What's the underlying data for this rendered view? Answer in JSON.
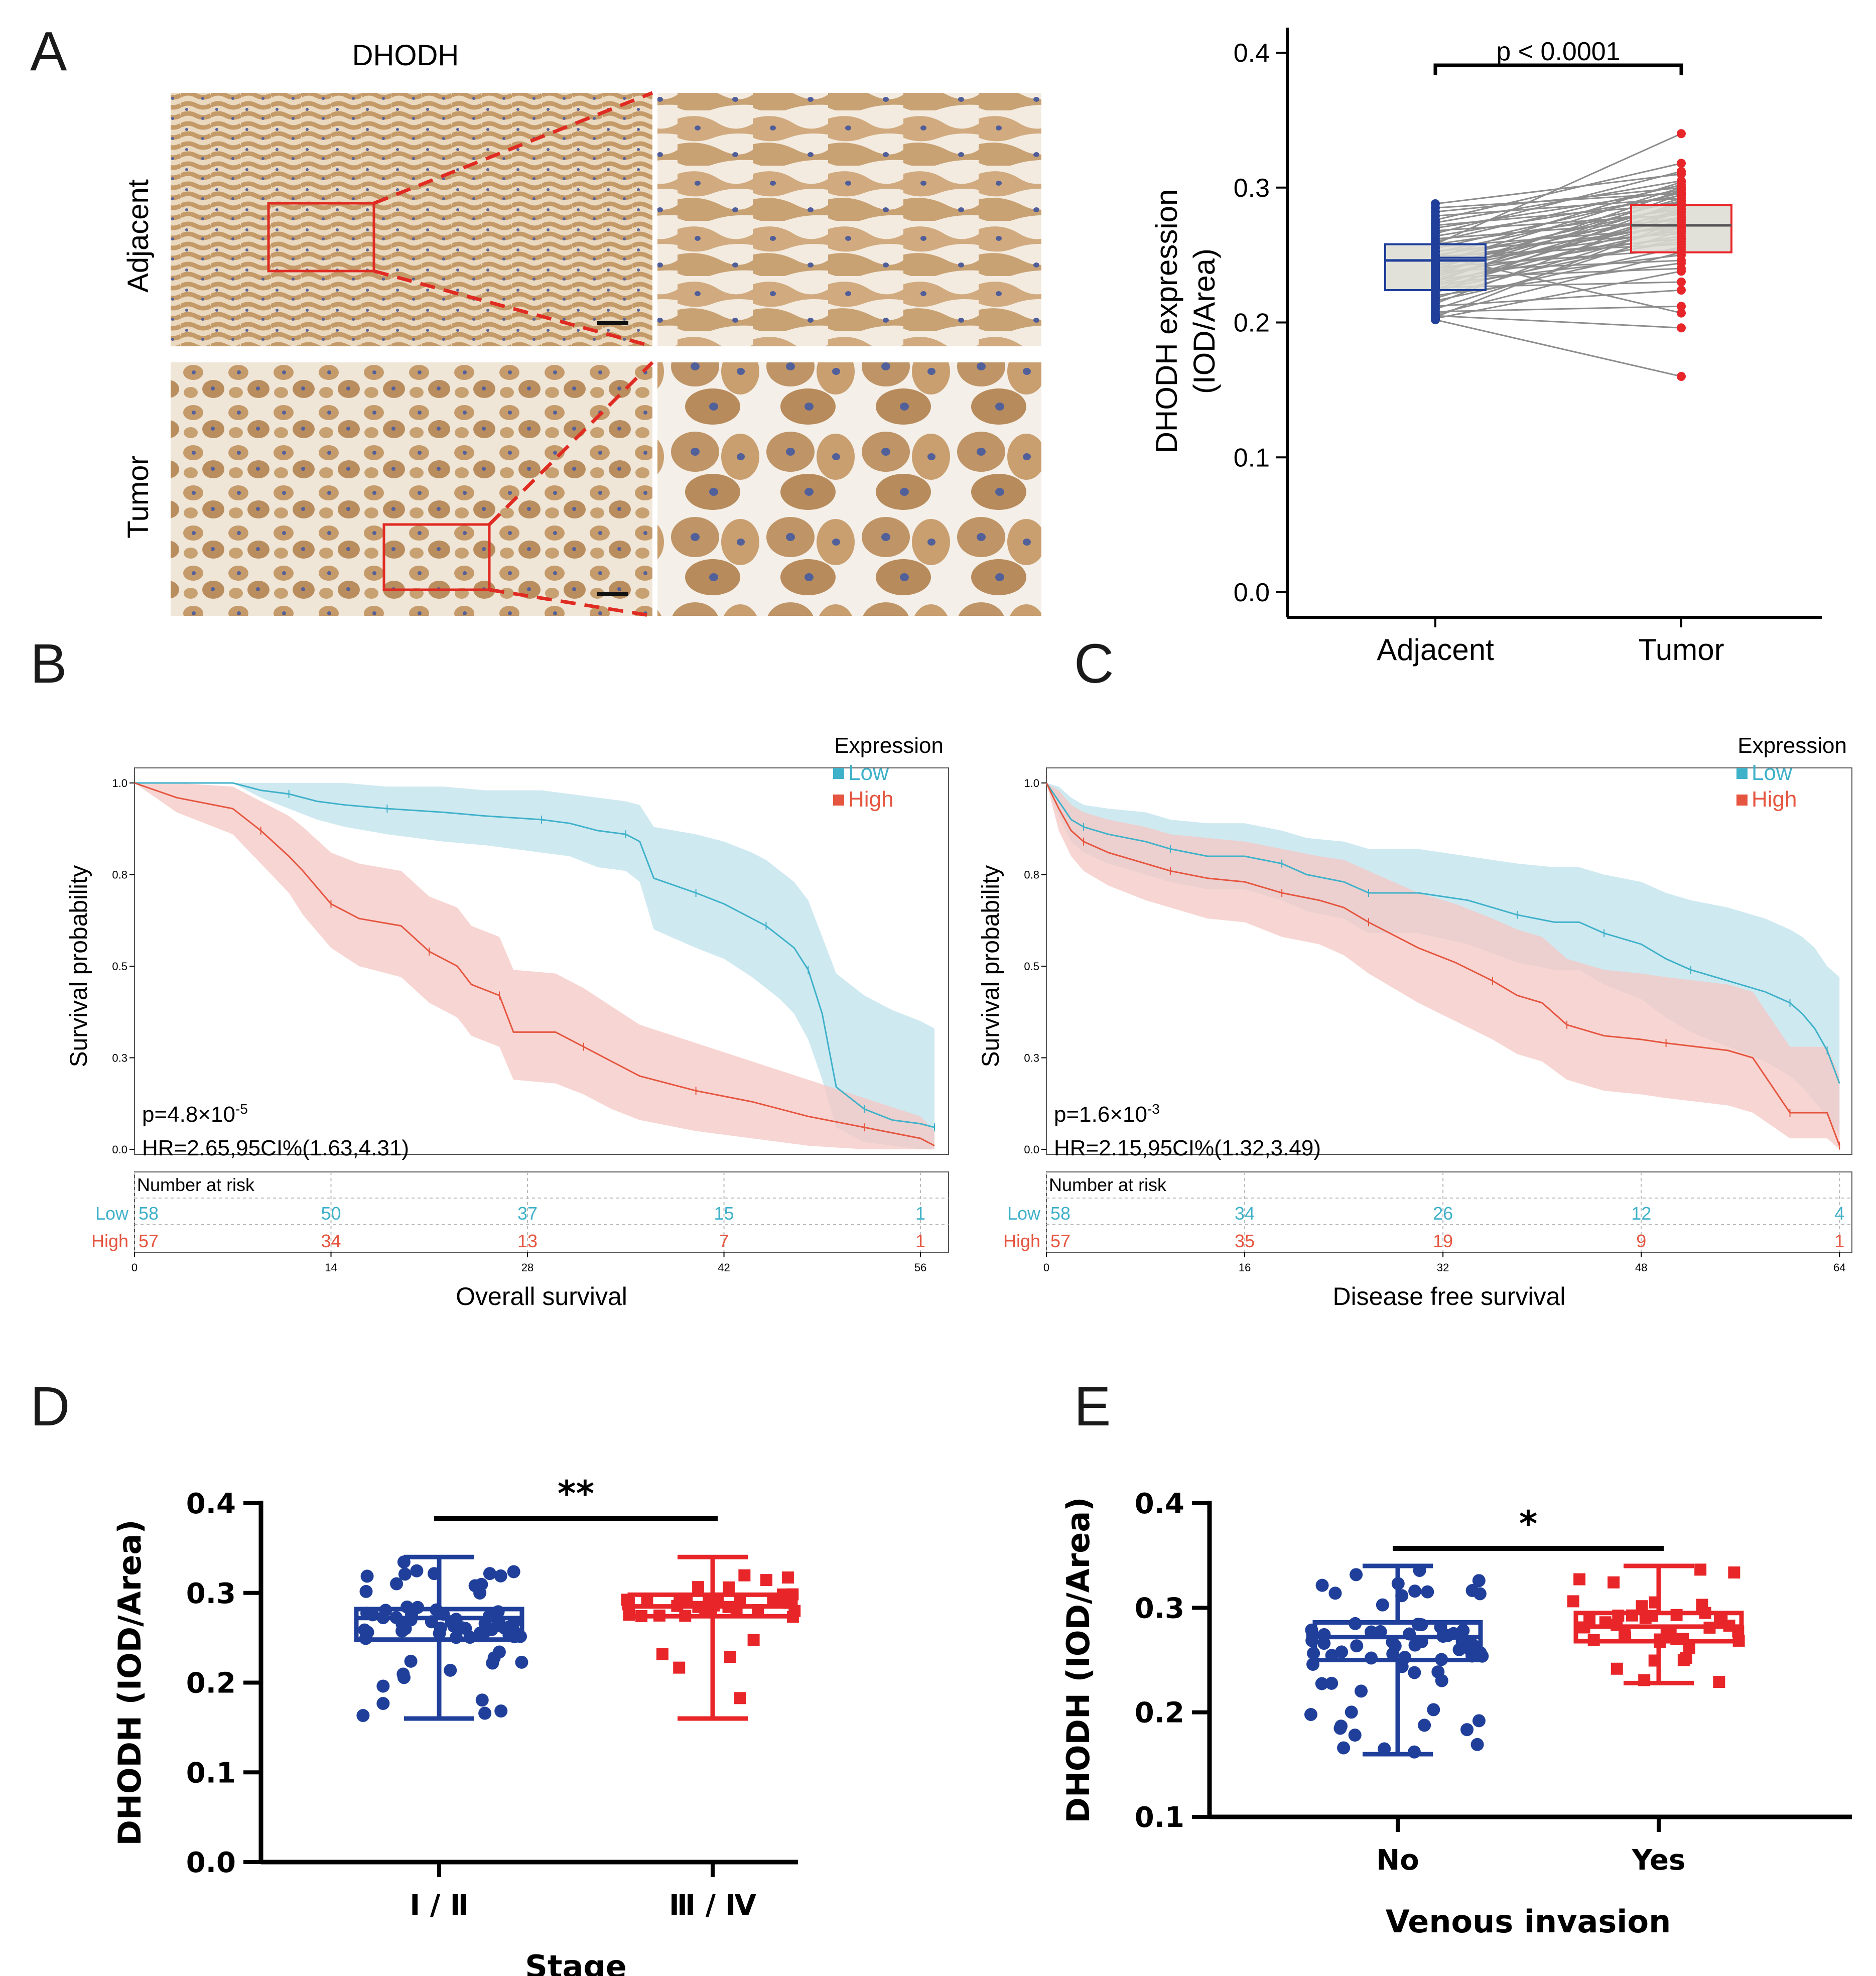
{
  "colors": {
    "blue_dark": "#1f3f9a",
    "red": "#e8262a",
    "km_low": "#3fb1c9",
    "km_high": "#e5553f",
    "km_low_band": "#bfe1ec",
    "km_high_band": "#f4c7c3",
    "grey_line": "#8c8c8c",
    "box_fill": "#dcdcd4",
    "tissue_bg": "#efe4d2",
    "tissue_cell": "#c79b6a",
    "nuclei": "#4c5a93"
  },
  "panelA": {
    "letter": "A",
    "stain_title": "DHODH",
    "row_labels": [
      "Adjacent",
      "Tumor"
    ]
  },
  "panelA_chart": {
    "title_label": "p < 0.0001",
    "ylabel_line1": "DHODH expression",
    "ylabel_line2": "(IOD/Area)",
    "categories": [
      "Adjacent",
      "Tumor"
    ]
  },
  "panelB": {
    "letter": "B"
  },
  "panelC": {
    "letter": "C"
  },
  "panelD": {
    "letter": "D"
  },
  "panelE": {
    "letter": "E"
  },
  "chart_data": [
    {
      "id": "A-paired-box",
      "type": "box",
      "title": "p < 0.0001",
      "xlabel": "",
      "ylabel": "DHODH expression (IOD/Area)",
      "categories": [
        "Adjacent",
        "Tumor"
      ],
      "yticks": [
        "0.0",
        "0.1",
        "0.2",
        "0.3",
        "0.4"
      ],
      "ylim": [
        0,
        0.4
      ],
      "boxes": [
        {
          "name": "Adjacent",
          "q1": 0.224,
          "median": 0.246,
          "q3": 0.258,
          "min": 0.202,
          "max": 0.288
        },
        {
          "name": "Tumor",
          "q1": 0.252,
          "median": 0.272,
          "q3": 0.287,
          "min": 0.16,
          "max": 0.34
        }
      ],
      "pairs": [
        [
          0.288,
          0.31
        ],
        [
          0.285,
          0.296
        ],
        [
          0.282,
          0.3
        ],
        [
          0.279,
          0.292
        ],
        [
          0.276,
          0.318
        ],
        [
          0.274,
          0.305
        ],
        [
          0.272,
          0.288
        ],
        [
          0.27,
          0.298
        ],
        [
          0.268,
          0.28
        ],
        [
          0.266,
          0.312
        ],
        [
          0.264,
          0.294
        ],
        [
          0.262,
          0.276
        ],
        [
          0.26,
          0.302
        ],
        [
          0.258,
          0.284
        ],
        [
          0.256,
          0.27
        ],
        [
          0.255,
          0.296
        ],
        [
          0.253,
          0.266
        ],
        [
          0.252,
          0.29
        ],
        [
          0.25,
          0.278
        ],
        [
          0.249,
          0.258
        ],
        [
          0.248,
          0.304
        ],
        [
          0.247,
          0.272
        ],
        [
          0.246,
          0.286
        ],
        [
          0.245,
          0.262
        ],
        [
          0.244,
          0.3
        ],
        [
          0.243,
          0.268
        ],
        [
          0.242,
          0.282
        ],
        [
          0.241,
          0.254
        ],
        [
          0.24,
          0.292
        ],
        [
          0.239,
          0.274
        ],
        [
          0.238,
          0.246
        ],
        [
          0.237,
          0.288
        ],
        [
          0.236,
          0.264
        ],
        [
          0.235,
          0.298
        ],
        [
          0.234,
          0.278
        ],
        [
          0.233,
          0.24
        ],
        [
          0.232,
          0.284
        ],
        [
          0.231,
          0.26
        ],
        [
          0.23,
          0.295
        ],
        [
          0.229,
          0.27
        ],
        [
          0.228,
          0.25
        ],
        [
          0.227,
          0.282
        ],
        [
          0.226,
          0.23
        ],
        [
          0.225,
          0.276
        ],
        [
          0.224,
          0.262
        ],
        [
          0.222,
          0.29
        ],
        [
          0.22,
          0.244
        ],
        [
          0.218,
          0.272
        ],
        [
          0.216,
          0.256
        ],
        [
          0.214,
          0.284
        ],
        [
          0.212,
          0.224
        ],
        [
          0.21,
          0.268
        ],
        [
          0.208,
          0.212
        ],
        [
          0.206,
          0.252
        ],
        [
          0.205,
          0.196
        ],
        [
          0.204,
          0.276
        ],
        [
          0.203,
          0.238
        ],
        [
          0.202,
          0.16
        ],
        [
          0.258,
          0.34
        ],
        [
          0.25,
          0.207
        ]
      ]
    },
    {
      "id": "B-km",
      "type": "line",
      "title": "",
      "xlabel": "Overall survival",
      "ylabel": "Survival probability",
      "xlim": [
        0,
        58
      ],
      "ylim": [
        0,
        1
      ],
      "xticks": [
        "0",
        "14",
        "28",
        "42",
        "56"
      ],
      "yticks": [
        "0.0",
        "0.3",
        "0.5",
        "0.8",
        "1.0"
      ],
      "legend_title": "Expression",
      "p_value_base": "p=4.8×10",
      "p_value_exp": "-5",
      "hr_text": "HR=2.65,95CI%(1.63,4.31)",
      "risk_title": "Number at risk",
      "series": [
        {
          "name": "Low",
          "x": [
            0,
            7,
            9,
            11,
            13,
            15,
            18,
            22,
            25,
            29,
            31,
            33,
            35,
            36,
            37,
            40,
            42,
            44,
            45,
            46,
            47,
            48,
            49,
            50,
            52,
            54,
            56,
            57
          ],
          "y": [
            1.0,
            1.0,
            0.98,
            0.97,
            0.95,
            0.94,
            0.93,
            0.92,
            0.91,
            0.9,
            0.89,
            0.87,
            0.86,
            0.84,
            0.74,
            0.7,
            0.67,
            0.63,
            0.61,
            0.58,
            0.55,
            0.49,
            0.37,
            0.17,
            0.11,
            0.08,
            0.07,
            0.06
          ],
          "upper": [
            1.0,
            1.0,
            1.0,
            1.0,
            1.0,
            1.0,
            0.99,
            0.99,
            0.98,
            0.98,
            0.97,
            0.96,
            0.95,
            0.94,
            0.88,
            0.86,
            0.84,
            0.81,
            0.79,
            0.76,
            0.73,
            0.68,
            0.58,
            0.48,
            0.42,
            0.38,
            0.35,
            0.33
          ],
          "lower": [
            1.0,
            1.0,
            0.96,
            0.93,
            0.9,
            0.88,
            0.86,
            0.84,
            0.83,
            0.81,
            0.8,
            0.77,
            0.76,
            0.73,
            0.6,
            0.55,
            0.52,
            0.47,
            0.44,
            0.41,
            0.37,
            0.3,
            0.19,
            0.06,
            0.02,
            0.01,
            0.0,
            0.0
          ],
          "risk": [
            "58",
            "50",
            "37",
            "15",
            "1"
          ]
        },
        {
          "name": "High",
          "x": [
            0,
            3,
            7,
            9,
            11,
            12,
            14,
            16,
            19,
            21,
            23,
            24,
            26,
            27,
            30,
            32,
            34,
            36,
            40,
            44,
            48,
            52,
            56,
            57
          ],
          "y": [
            1.0,
            0.96,
            0.93,
            0.87,
            0.8,
            0.76,
            0.67,
            0.63,
            0.61,
            0.54,
            0.5,
            0.45,
            0.42,
            0.32,
            0.32,
            0.28,
            0.24,
            0.2,
            0.16,
            0.13,
            0.09,
            0.06,
            0.03,
            0.01
          ],
          "upper": [
            1.0,
            1.0,
            0.99,
            0.95,
            0.91,
            0.88,
            0.81,
            0.78,
            0.76,
            0.69,
            0.66,
            0.61,
            0.58,
            0.49,
            0.48,
            0.44,
            0.39,
            0.34,
            0.29,
            0.24,
            0.19,
            0.14,
            0.09,
            0.05
          ],
          "lower": [
            1.0,
            0.92,
            0.86,
            0.78,
            0.7,
            0.64,
            0.55,
            0.5,
            0.47,
            0.4,
            0.36,
            0.31,
            0.28,
            0.19,
            0.18,
            0.15,
            0.11,
            0.08,
            0.05,
            0.03,
            0.01,
            0.0,
            0.0,
            0.0
          ],
          "risk": [
            "57",
            "34",
            "13",
            "7",
            "1"
          ]
        }
      ]
    },
    {
      "id": "C-km",
      "type": "line",
      "title": "",
      "xlabel": "Disease free survival",
      "ylabel": "Survival probability",
      "xlim": [
        0,
        65
      ],
      "ylim": [
        0,
        1
      ],
      "xticks": [
        "0",
        "16",
        "32",
        "48",
        "64"
      ],
      "yticks": [
        "0.0",
        "0.3",
        "0.5",
        "0.8",
        "1.0"
      ],
      "legend_title": "Expression",
      "p_value_base": "p=1.6×10",
      "p_value_exp": "-3",
      "hr_text": "HR=2.15,95CI%(1.32,3.49)",
      "risk_title": "Number at risk",
      "series": [
        {
          "name": "Low",
          "x": [
            0,
            1,
            2,
            3,
            5,
            8,
            10,
            13,
            16,
            19,
            21,
            24,
            26,
            30,
            34,
            38,
            41,
            43,
            45,
            48,
            50,
            52,
            55,
            58,
            60,
            61,
            62,
            63,
            64
          ],
          "y": [
            1.0,
            0.95,
            0.9,
            0.88,
            0.86,
            0.84,
            0.82,
            0.8,
            0.8,
            0.78,
            0.75,
            0.73,
            0.7,
            0.7,
            0.68,
            0.64,
            0.62,
            0.62,
            0.59,
            0.56,
            0.52,
            0.49,
            0.46,
            0.43,
            0.4,
            0.37,
            0.33,
            0.27,
            0.18
          ],
          "upper": [
            1.0,
            0.99,
            0.96,
            0.94,
            0.93,
            0.92,
            0.9,
            0.89,
            0.89,
            0.87,
            0.85,
            0.84,
            0.82,
            0.82,
            0.8,
            0.78,
            0.77,
            0.77,
            0.75,
            0.73,
            0.7,
            0.68,
            0.66,
            0.63,
            0.6,
            0.58,
            0.55,
            0.5,
            0.47
          ],
          "lower": [
            1.0,
            0.91,
            0.84,
            0.81,
            0.78,
            0.75,
            0.73,
            0.71,
            0.71,
            0.68,
            0.65,
            0.63,
            0.59,
            0.59,
            0.56,
            0.51,
            0.49,
            0.49,
            0.45,
            0.41,
            0.36,
            0.32,
            0.28,
            0.24,
            0.2,
            0.17,
            0.13,
            0.09,
            0.04
          ]
        },
        {
          "name": "High",
          "x": [
            0,
            1,
            2,
            3,
            5,
            8,
            10,
            13,
            16,
            19,
            22,
            24,
            26,
            30,
            33,
            36,
            38,
            40,
            42,
            45,
            48,
            50,
            55,
            57,
            60,
            61,
            63,
            64
          ],
          "y": [
            1.0,
            0.93,
            0.87,
            0.84,
            0.81,
            0.78,
            0.76,
            0.74,
            0.73,
            0.7,
            0.68,
            0.66,
            0.62,
            0.55,
            0.51,
            0.46,
            0.42,
            0.4,
            0.34,
            0.31,
            0.3,
            0.29,
            0.27,
            0.25,
            0.1,
            0.1,
            0.1,
            0.01
          ],
          "upper": [
            1.0,
            0.98,
            0.94,
            0.92,
            0.9,
            0.88,
            0.86,
            0.85,
            0.84,
            0.82,
            0.8,
            0.79,
            0.76,
            0.7,
            0.67,
            0.63,
            0.6,
            0.58,
            0.52,
            0.49,
            0.48,
            0.47,
            0.45,
            0.43,
            0.28,
            0.28,
            0.28,
            0.2
          ],
          "lower": [
            1.0,
            0.87,
            0.8,
            0.76,
            0.72,
            0.68,
            0.66,
            0.63,
            0.62,
            0.58,
            0.56,
            0.53,
            0.48,
            0.4,
            0.35,
            0.3,
            0.26,
            0.24,
            0.19,
            0.16,
            0.15,
            0.14,
            0.12,
            0.1,
            0.03,
            0.03,
            0.03,
            0.0
          ],
          "risk": [
            "57",
            "35",
            "19",
            "9",
            "1"
          ]
        }
      ],
      "risk_low": [
        "58",
        "34",
        "26",
        "12",
        "4"
      ]
    },
    {
      "id": "D-box",
      "type": "box",
      "title": "**",
      "xlabel": "Stage",
      "ylabel": "DHODH (IOD/Area)",
      "categories": [
        "Ⅰ / Ⅱ",
        "Ⅲ / Ⅳ"
      ],
      "yticks": [
        "0.0",
        "0.1",
        "0.2",
        "0.3",
        "0.4"
      ],
      "ylim": [
        0,
        0.4
      ],
      "boxes": [
        {
          "name": "Ⅰ / Ⅱ",
          "min": 0.16,
          "q1": 0.248,
          "median": 0.272,
          "q3": 0.282,
          "max": 0.34
        },
        {
          "name": "Ⅲ / Ⅳ",
          "min": 0.16,
          "q1": 0.274,
          "median": 0.285,
          "q3": 0.298,
          "max": 0.34
        }
      ]
    },
    {
      "id": "E-box",
      "type": "box",
      "title": "*",
      "xlabel": "Venous invasion",
      "ylabel": "DHODH (IOD/Area)",
      "categories": [
        "No",
        "Yes"
      ],
      "yticks": [
        "0.1",
        "0.2",
        "0.3",
        "0.4"
      ],
      "ylim": [
        0.1,
        0.4
      ],
      "boxes": [
        {
          "name": "No",
          "min": 0.16,
          "q1": 0.25,
          "median": 0.272,
          "q3": 0.286,
          "max": 0.34
        },
        {
          "name": "Yes",
          "min": 0.228,
          "q1": 0.268,
          "median": 0.282,
          "q3": 0.295,
          "max": 0.34
        }
      ]
    }
  ]
}
